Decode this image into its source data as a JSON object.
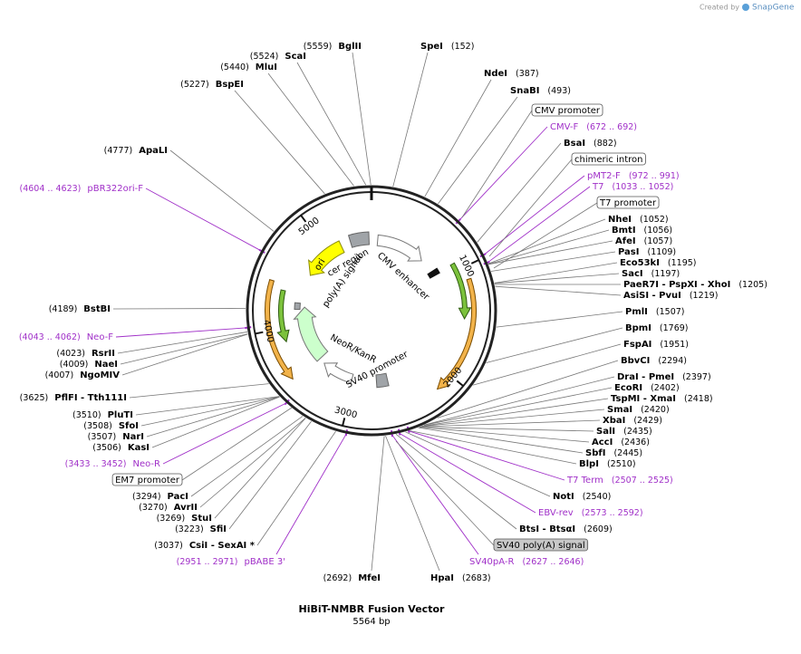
{
  "credit": "Created by",
  "brand": "SnapGene",
  "title": "HiBiT-NMBR Fusion Vector",
  "subtitle": "5564 bp",
  "ring_ticks": [
    1000,
    2000,
    3000,
    4000,
    5000
  ],
  "enzymes_right": [
    {
      "name": "SpeI",
      "position": "(152)"
    },
    {
      "name": "NdeI",
      "position": "(387)"
    },
    {
      "name": "SnaBI",
      "position": "(493)"
    },
    {
      "name": "BsaI",
      "position": "(882)"
    },
    {
      "name": "NheI",
      "position": "(1052)"
    },
    {
      "name": "BmtI",
      "position": "(1056)"
    },
    {
      "name": "AfeI",
      "position": "(1057)"
    },
    {
      "name": "PasI",
      "position": "(1109)"
    },
    {
      "name": "Eco53kI",
      "position": "(1195)"
    },
    {
      "name": "SacI",
      "position": "(1197)"
    },
    {
      "name": "PaeR7I - PspXI - XhoI",
      "position": "(1205)"
    },
    {
      "name": "AsiSI - PvuI",
      "position": "(1219)"
    },
    {
      "name": "PmlI",
      "position": "(1507)"
    },
    {
      "name": "BpmI",
      "position": "(1769)"
    },
    {
      "name": "FspAI",
      "position": "(1951)"
    },
    {
      "name": "BbvCI",
      "position": "(2294)"
    },
    {
      "name": "DraI - PmeI",
      "position": "(2397)"
    },
    {
      "name": "EcoRI",
      "position": "(2402)"
    },
    {
      "name": "TspMI - XmaI",
      "position": "(2418)"
    },
    {
      "name": "SmaI",
      "position": "(2420)"
    },
    {
      "name": "XbaI",
      "position": "(2429)"
    },
    {
      "name": "SalI",
      "position": "(2435)"
    },
    {
      "name": "AccI",
      "position": "(2436)"
    },
    {
      "name": "SbfI",
      "position": "(2445)"
    },
    {
      "name": "BlpI",
      "position": "(2510)"
    },
    {
      "name": "NotI",
      "position": "(2540)"
    },
    {
      "name": "BtsI - BtsαI",
      "position": "(2609)"
    },
    {
      "name": "HpaI",
      "position": "(2683)"
    }
  ],
  "enzymes_left": [
    {
      "name": "BglII",
      "position": "(5559)"
    },
    {
      "name": "ScaI",
      "position": "(5524)"
    },
    {
      "name": "MluI",
      "position": "(5440)"
    },
    {
      "name": "BspEI",
      "position": "(5227)"
    },
    {
      "name": "ApaLI",
      "position": "(4777)"
    },
    {
      "name": "BstBI",
      "position": "(4189)"
    },
    {
      "name": "RsrII",
      "position": "(4023)"
    },
    {
      "name": "NaeI",
      "position": "(4009)"
    },
    {
      "name": "NgoMIV",
      "position": "(4007)"
    },
    {
      "name": "PflFI - Tth111I",
      "position": "(3625)"
    },
    {
      "name": "PluTI",
      "position": "(3510)"
    },
    {
      "name": "SfoI",
      "position": "(3508)"
    },
    {
      "name": "NarI",
      "position": "(3507)"
    },
    {
      "name": "KasI",
      "position": "(3506)"
    },
    {
      "name": "PacI",
      "position": "(3294)"
    },
    {
      "name": "AvrII",
      "position": "(3270)"
    },
    {
      "name": "StuI",
      "position": "(3269)"
    },
    {
      "name": "SfiI",
      "position": "(3223)"
    },
    {
      "name": "CsiI - SexAI *",
      "position": "(3037)"
    },
    {
      "name": "MfeI",
      "position": "(2692)"
    }
  ],
  "primers_right": [
    {
      "name": "CMV-F",
      "position": "(672 .. 692)"
    },
    {
      "name": "pMT2-F",
      "position": "(972 .. 991)"
    },
    {
      "name": "T7",
      "position": "(1033 .. 1052)"
    },
    {
      "name": "T7 Term",
      "position": "(2507 .. 2525)"
    },
    {
      "name": "EBV-rev",
      "position": "(2573 .. 2592)"
    },
    {
      "name": "SV40pA-R",
      "position": "(2627 .. 2646)"
    }
  ],
  "primers_left": [
    {
      "name": "pBR322ori-F",
      "position": "(4604 .. 4623)"
    },
    {
      "name": "Neo-F",
      "position": "(4043 .. 4062)"
    },
    {
      "name": "Neo-R",
      "position": "(3433 .. 3452)"
    },
    {
      "name": "pBABE 3'",
      "position": "(2951 .. 2971)"
    }
  ],
  "feature_boxes": [
    "CMV promoter",
    "chimeric intron",
    "T7 promoter",
    "SV40 poly(A) signal",
    "EM7 promoter"
  ],
  "inner_features": [
    "ori",
    "cer region",
    "poly(A) signal",
    "CMV enhancer",
    "NeoR/KanR",
    "SV40 promoter"
  ]
}
